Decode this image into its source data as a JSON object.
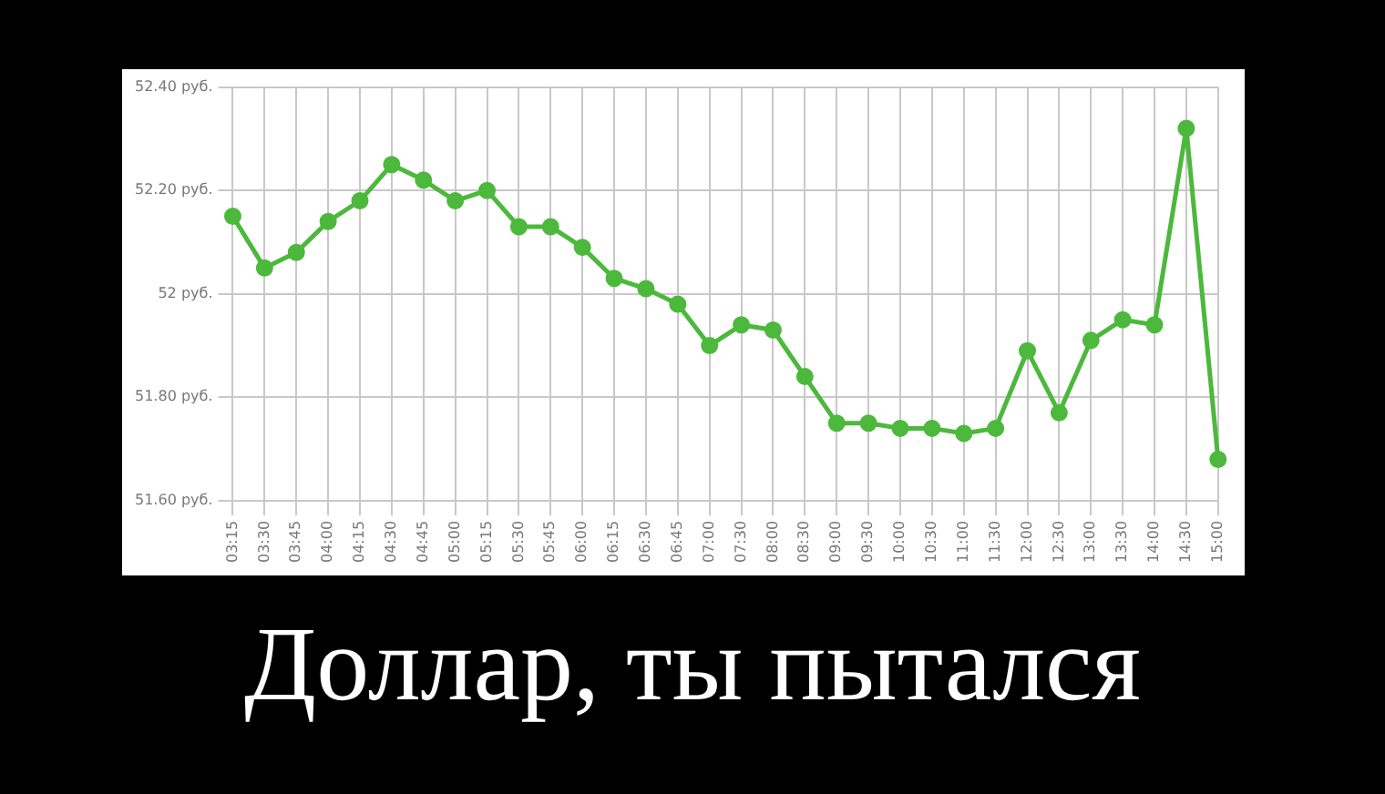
{
  "chart_data": {
    "type": "line",
    "title": "Доллар, ты пытался",
    "categories": [
      "03:15",
      "03:30",
      "03:45",
      "04:00",
      "04:15",
      "04:30",
      "04:45",
      "05:00",
      "05:15",
      "05:30",
      "05:45",
      "06:00",
      "06:15",
      "06:30",
      "06:45",
      "07:00",
      "07:30",
      "08:00",
      "08:30",
      "09:00",
      "09:30",
      "10:00",
      "10:30",
      "11:00",
      "11:30",
      "12:00",
      "12:30",
      "13:00",
      "13:30",
      "14:00",
      "14:30",
      "15:00"
    ],
    "series": [
      {
        "color": "#4cb83c",
        "values": [
          52.15,
          52.05,
          52.08,
          52.14,
          52.18,
          52.25,
          52.22,
          52.18,
          52.2,
          52.13,
          52.13,
          52.09,
          52.03,
          52.01,
          51.98,
          51.9,
          51.94,
          51.93,
          51.84,
          51.75,
          51.75,
          51.74,
          51.74,
          51.73,
          51.74,
          51.89,
          51.77,
          51.91,
          51.95,
          51.94,
          52.32,
          51.68
        ]
      }
    ],
    "ylim": [
      51.6,
      52.4
    ],
    "yticks": [
      {
        "value": 51.6,
        "label": "51.60 руб."
      },
      {
        "value": 51.8,
        "label": "51.80 руб."
      },
      {
        "value": 52,
        "label": "52 руб."
      },
      {
        "value": 52.2,
        "label": "52.20 руб."
      },
      {
        "value": 52.4,
        "label": "52.40 руб."
      }
    ],
    "grid": true,
    "legend": false,
    "marker": "circle",
    "line_style": "solid"
  }
}
